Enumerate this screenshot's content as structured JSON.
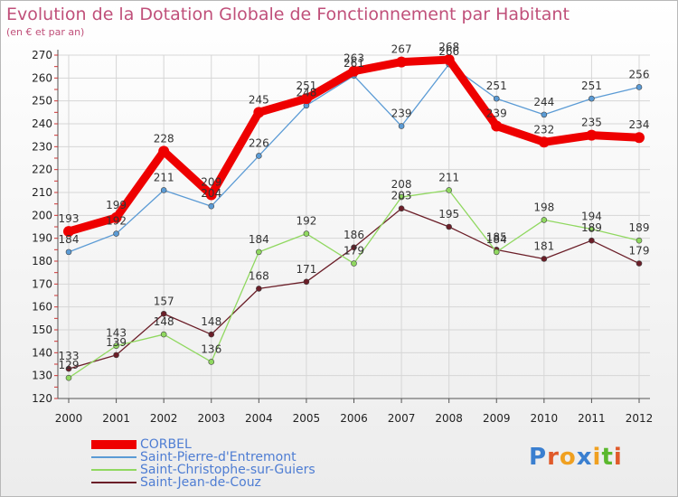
{
  "chart_data": {
    "type": "line",
    "title": "Evolution de la Dotation Globale de Fonctionnement par Habitant",
    "subtitle": "(en € et par an)",
    "x": [
      2000,
      2001,
      2002,
      2003,
      2004,
      2005,
      2006,
      2007,
      2008,
      2009,
      2010,
      2011,
      2012
    ],
    "ylim": [
      120,
      270
    ],
    "yticks": [
      120,
      130,
      140,
      150,
      160,
      170,
      180,
      190,
      200,
      210,
      220,
      230,
      240,
      250,
      260,
      270
    ],
    "grid": true,
    "legend_position": "bottom-left",
    "series": [
      {
        "name": "CORBEL",
        "color": "#ee0000",
        "values": [
          193,
          199,
          228,
          209,
          245,
          251,
          263,
          267,
          268,
          239,
          232,
          235,
          234
        ]
      },
      {
        "name": "Saint-Pierre-d'Entremont",
        "color": "#5b9bd5",
        "values": [
          184,
          192,
          211,
          204,
          226,
          248,
          261,
          239,
          266,
          251,
          244,
          251,
          256
        ]
      },
      {
        "name": "Saint-Christophe-sur-Guiers",
        "color": "#90d860",
        "values": [
          129,
          143,
          148,
          136,
          184,
          192,
          179,
          208,
          211,
          184,
          198,
          194,
          189
        ]
      },
      {
        "name": "Saint-Jean-de-Couz",
        "color": "#6b1e28",
        "values": [
          133,
          139,
          157,
          148,
          168,
          171,
          186,
          203,
          195,
          185,
          181,
          189,
          179
        ]
      }
    ]
  },
  "brand": {
    "p": "P",
    "r": "r",
    "o": "o",
    "x": "x",
    "i": "i",
    "t": "t",
    "i2": "i"
  }
}
